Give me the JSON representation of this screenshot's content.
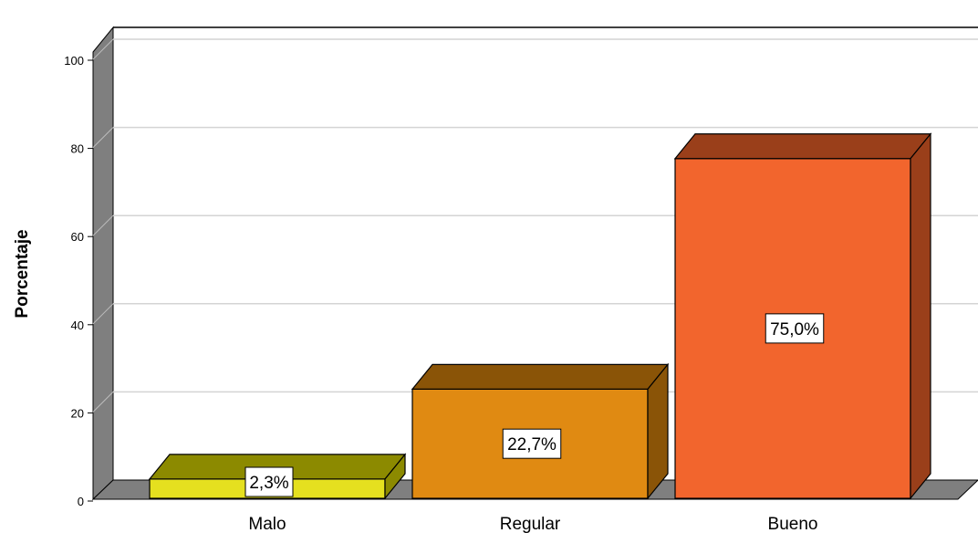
{
  "chart_data": {
    "type": "bar",
    "style": "3d",
    "categories": [
      "Malo",
      "Regular",
      "Bueno"
    ],
    "values": [
      2.3,
      22.7,
      75.0
    ],
    "data_labels": [
      "2,3%",
      "22,7%",
      "75,0%"
    ],
    "title": "",
    "xlabel": "",
    "ylabel": "Porcentaje",
    "ylim": [
      0,
      100
    ],
    "yticks": [
      0,
      20,
      40,
      60,
      80,
      100
    ],
    "grid": true,
    "legend": "none",
    "colors": {
      "bars": [
        {
          "front": "#e5e01f",
          "top": "#8c8a00",
          "side": "#8c8a00"
        },
        {
          "front": "#e08a12",
          "top": "#8a5407",
          "side": "#8a5407"
        },
        {
          "front": "#f2652d",
          "top": "#9a3f1a",
          "side": "#9a3f1a"
        }
      ],
      "wall": "#7f7f7f",
      "gridline": "#d4d4d4"
    }
  }
}
